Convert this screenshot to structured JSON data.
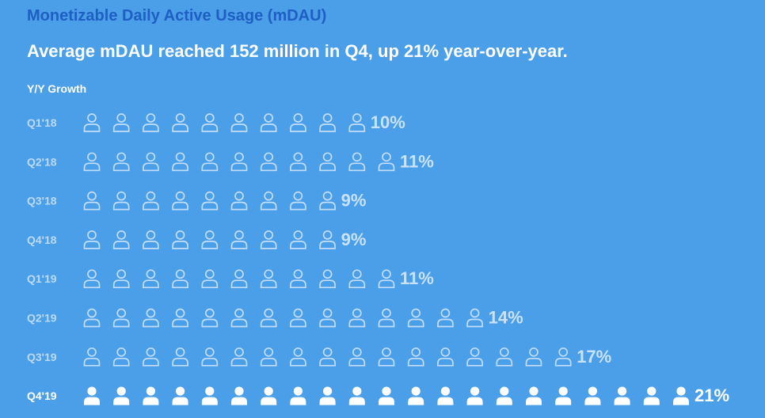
{
  "title": "Monetizable Daily Active Usage (mDAU)",
  "subtitle": "Average mDAU reached 152 million in Q4, up 21% year-over-year.",
  "colors": {
    "background": "#4a9fe8",
    "title": "#1f5fc4",
    "icon_outline": "#c2ddf7",
    "icon_highlight": "#ffffff"
  },
  "icon": "person-icon",
  "chart_data": {
    "type": "bar",
    "orientation": "horizontal",
    "ylabel": "Y/Y Growth",
    "categories": [
      "Q1'18",
      "Q2'18",
      "Q3'18",
      "Q4'18",
      "Q1'19",
      "Q2'19",
      "Q3'19",
      "Q4'19"
    ],
    "values": [
      10,
      11,
      9,
      9,
      11,
      14,
      17,
      21
    ],
    "value_labels": [
      "10%",
      "11%",
      "9%",
      "9%",
      "11%",
      "14%",
      "17%",
      "21%"
    ],
    "units_per_icon": 1,
    "highlight": "Q4'19"
  }
}
